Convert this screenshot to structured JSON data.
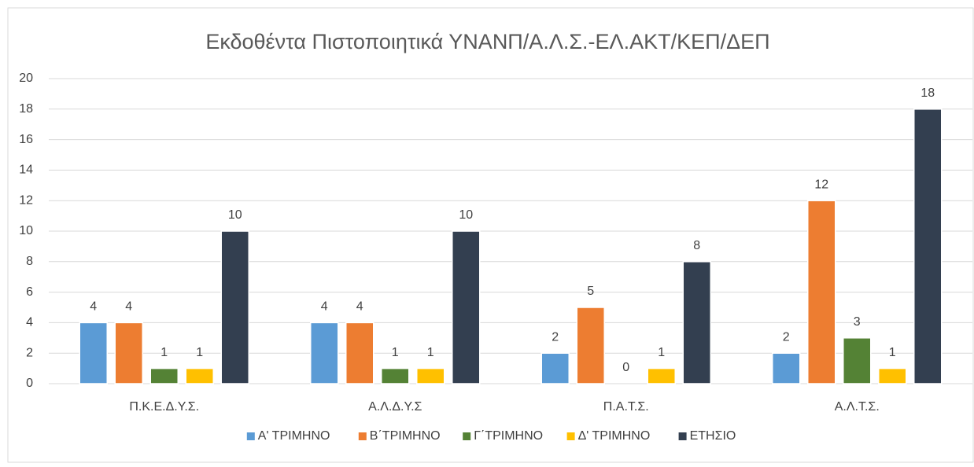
{
  "chart_data": {
    "type": "bar",
    "title": "Εκδοθέντα Πιστοποιητικά ΥΝΑΝΠ/Α.Λ.Σ.-ΕΛ.ΑΚΤ/ΚΕΠ/ΔΕΠ",
    "categories": [
      "Π.Κ.Ε.Δ.Υ.Σ.",
      "Α.Λ.Δ.Υ.Σ",
      "Π.Α.Τ.Σ.",
      "Α.Λ.Τ.Σ."
    ],
    "series": [
      {
        "name": "Α' ΤΡΙΜΗΝΟ",
        "color": "#5b9bd5",
        "values": [
          4,
          4,
          2,
          2
        ]
      },
      {
        "name": "Β΄ΤΡΙΜΗΝΟ",
        "color": "#ed7d31",
        "values": [
          4,
          4,
          5,
          12
        ]
      },
      {
        "name": "Γ΄ΤΡΙΜΗΝΟ",
        "color": "#548235",
        "values": [
          1,
          1,
          0,
          3
        ]
      },
      {
        "name": "Δ' ΤΡΙΜΗΝΟ",
        "color": "#ffc000",
        "values": [
          1,
          1,
          1,
          1
        ]
      },
      {
        "name": "ΕΤΗΣΙΟ",
        "color": "#333f50",
        "values": [
          10,
          10,
          8,
          18
        ]
      }
    ],
    "ylim": [
      0,
      20
    ],
    "yticks": [
      0,
      2,
      4,
      6,
      8,
      10,
      12,
      14,
      16,
      18,
      20
    ],
    "grid": true,
    "legend": "bottom"
  }
}
